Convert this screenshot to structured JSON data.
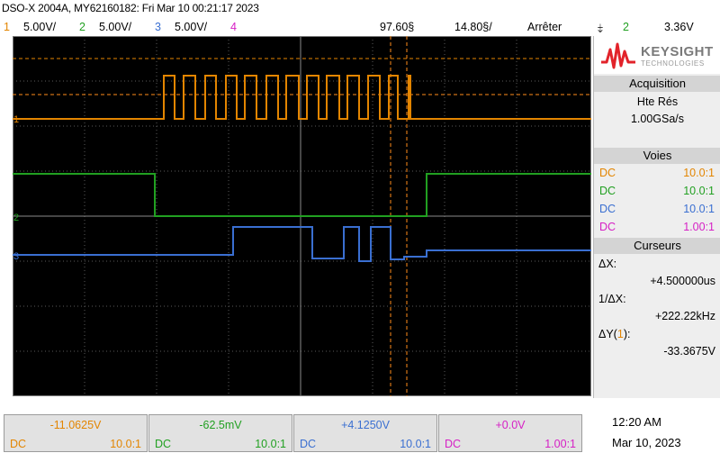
{
  "header": {
    "title": "DSO-X 2004A, MY62160182: Fri Mar 10 00:21:17 2023",
    "ch1_num": "1",
    "ch1_scale": "5.00V/",
    "ch2_num": "2",
    "ch2_scale": "5.00V/",
    "ch3_num": "3",
    "ch3_scale": "5.00V/",
    "ch4_num": "4",
    "delay": "97.60§",
    "timebase": "14.80§/",
    "run_state": "Arrêter",
    "trig_num": "2",
    "trig_level": "3.36V"
  },
  "colors": {
    "ch1": "#e38500",
    "ch2": "#21a021",
    "ch3": "#3a6fd1",
    "ch4": "#d620c5",
    "cursor": "#ff8c1a"
  },
  "sidebar": {
    "logo_name": "KEYSIGHT",
    "logo_sub": "TECHNOLOGIES",
    "acq_header": "Acquisition",
    "acq_mode": "Hte Rés",
    "acq_rate": "1.00GSa/s",
    "voies_header": "Voies",
    "voies": [
      {
        "coupling": "DC",
        "probe": "10.0:1"
      },
      {
        "coupling": "DC",
        "probe": "10.0:1"
      },
      {
        "coupling": "DC",
        "probe": "10.0:1"
      },
      {
        "coupling": "DC",
        "probe": "1.00:1"
      }
    ],
    "curs_header": "Curseurs",
    "dx_label": "ΔX:",
    "dx_value": "+4.500000us",
    "inv_dx_label": "1/ΔX:",
    "inv_dx_value": "+222.22kHz",
    "dy_label_a": "ΔY(",
    "dy_label_b": "1",
    "dy_label_c": "):",
    "dy_value": "-33.3675V"
  },
  "bottom": {
    "channels": [
      {
        "value": "-11.0625V",
        "coupling": "DC",
        "probe": "10.0:1"
      },
      {
        "value": "-62.5mV",
        "coupling": "DC",
        "probe": "10.0:1"
      },
      {
        "value": "+4.1250V",
        "coupling": "DC",
        "probe": "10.0:1"
      },
      {
        "value": "+0.0V",
        "coupling": "DC",
        "probe": "1.00:1"
      }
    ],
    "time": "12:20 AM",
    "date": "Mar 10, 2023"
  }
}
